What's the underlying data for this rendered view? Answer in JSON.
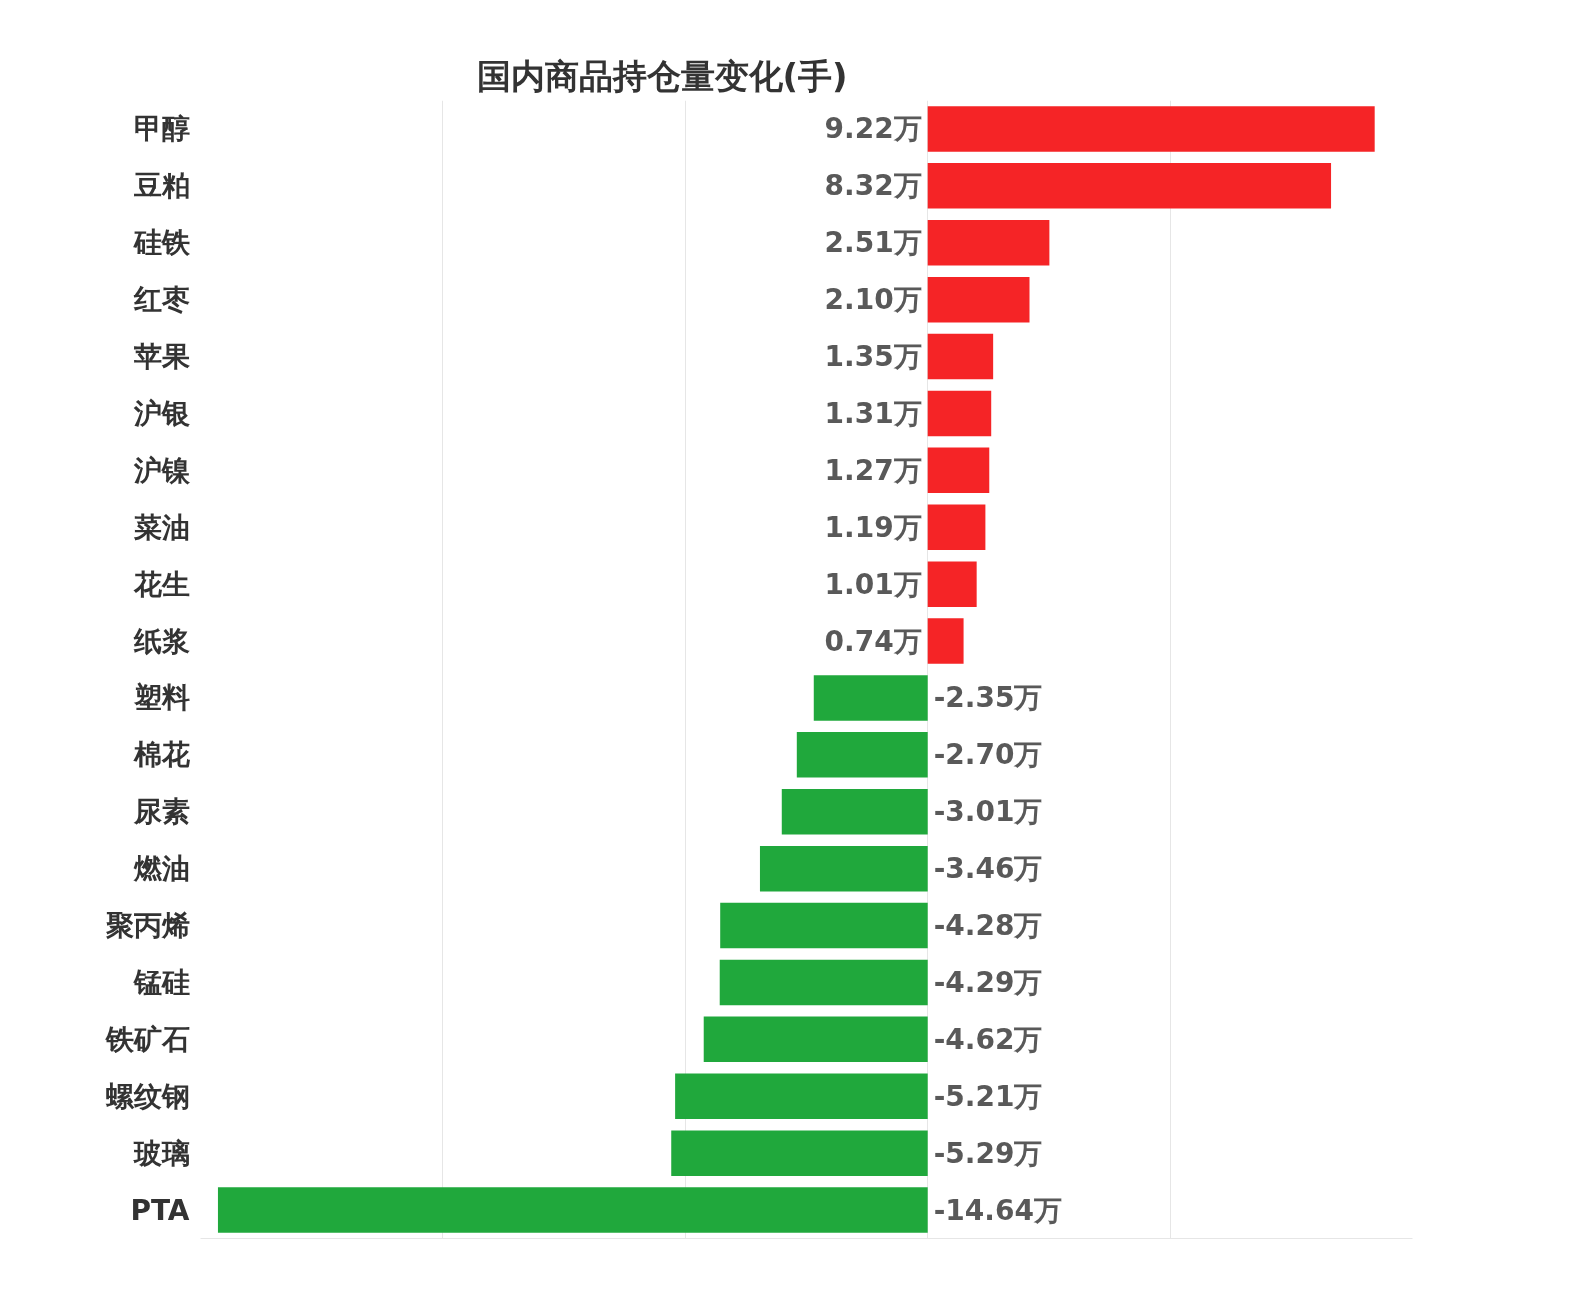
{
  "chart_data": {
    "type": "bar",
    "orientation": "horizontal",
    "title": "国内商品持仓量变化(手)",
    "categories": [
      "甲醇",
      "豆粕",
      "硅铁",
      "红枣",
      "苹果",
      "沪银",
      "沪镍",
      "菜油",
      "花生",
      "纸浆",
      "塑料",
      "棉花",
      "尿素",
      "燃油",
      "聚丙烯",
      "锰硅",
      "铁矿石",
      "螺纹钢",
      "玻璃",
      "PTA"
    ],
    "values": [
      9.22,
      8.32,
      2.51,
      2.1,
      1.35,
      1.31,
      1.27,
      1.19,
      1.01,
      0.74,
      -2.35,
      -2.7,
      -3.01,
      -3.46,
      -4.28,
      -4.29,
      -4.62,
      -5.21,
      -5.29,
      -14.64
    ],
    "value_labels": [
      "9.22万",
      "8.32万",
      "2.51万",
      "2.10万",
      "1.35万",
      "1.31万",
      "1.27万",
      "1.19万",
      "1.01万",
      "0.74万",
      "-2.35万",
      "-2.70万",
      "-3.01万",
      "-3.46万",
      "-4.28万",
      "-4.29万",
      "-4.62万",
      "-5.21万",
      "-5.29万",
      "-14.64万"
    ],
    "colors": [
      "#f52426",
      "#f52426",
      "#f52426",
      "#f52426",
      "#f52426",
      "#f52426",
      "#f52426",
      "#f52426",
      "#f52426",
      "#f52426",
      "#20a83c",
      "#20a83c",
      "#20a83c",
      "#20a83c",
      "#20a83c",
      "#20a83c",
      "#20a83c",
      "#20a83c",
      "#20a83c",
      "#20a83c"
    ],
    "xlim": [
      -15,
      10
    ],
    "grid": "x",
    "tick_labels": "y"
  }
}
